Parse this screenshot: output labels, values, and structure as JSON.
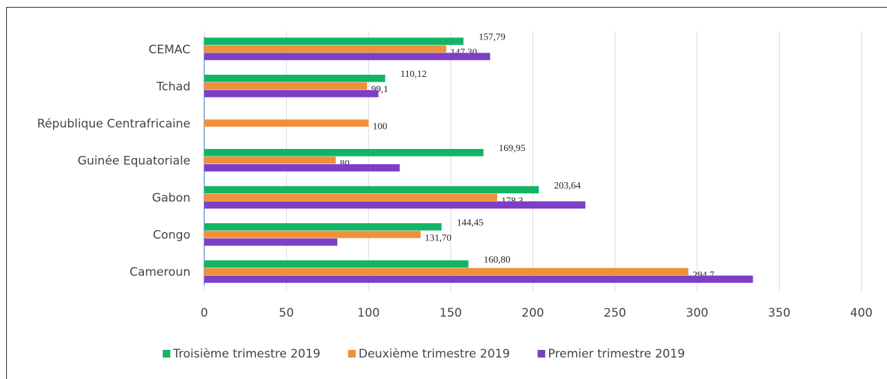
{
  "chart_data": {
    "type": "hbar",
    "categories": [
      "CEMAC",
      "Tchad",
      "République Centrafricaine",
      "Guinée Equatoriale",
      "Gabon",
      "Congo",
      "Cameroun"
    ],
    "series": [
      {
        "name": "Troisième trimestre 2019",
        "color": "#12b466",
        "values": [
          157.79,
          110.12,
          null,
          169.95,
          203.64,
          144.45,
          160.8
        ],
        "value_labels": [
          "157,79",
          "110,12",
          null,
          "169,95",
          "203,64",
          "144,45",
          "160,80"
        ]
      },
      {
        "name": "Deuxième trimestre 2019",
        "color": "#f0913a",
        "values": [
          147.3,
          99.1,
          100,
          80,
          178.3,
          131.7,
          294.7
        ],
        "value_labels": [
          "147,30",
          "99,1",
          "100",
          "80",
          "178,3",
          "131,70",
          "294,7"
        ]
      },
      {
        "name": "Premier trimestre 2019",
        "color": "#7e3fc6",
        "values": [
          174,
          106,
          null,
          119,
          232,
          81,
          334
        ]
      }
    ],
    "xlim": [
      0,
      400
    ],
    "xticks": [
      0,
      50,
      100,
      150,
      200,
      250,
      300,
      350,
      400
    ],
    "grid": true,
    "legend": "bottom"
  }
}
